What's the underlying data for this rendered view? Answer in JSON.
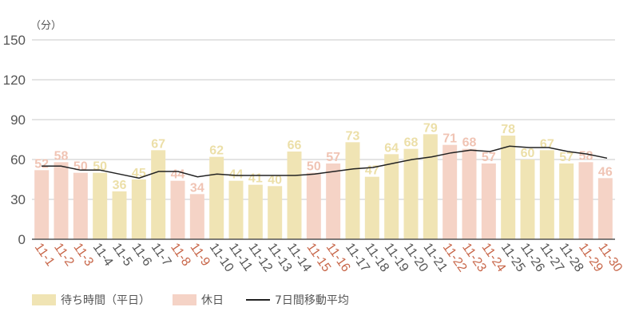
{
  "chart_data": {
    "type": "bar",
    "title": "",
    "unit_label": "（分）",
    "xlabel": "",
    "ylabel": "（分）",
    "ylim": [
      0,
      150
    ],
    "yticks": [
      0,
      30,
      60,
      90,
      120,
      150
    ],
    "grid": true,
    "legend_position": "bottom-left",
    "categories": [
      "11-1",
      "11-2",
      "11-3",
      "11-4",
      "11-5",
      "11-6",
      "11-7",
      "11-8",
      "11-9",
      "11-10",
      "11-11",
      "11-12",
      "11-13",
      "11-14",
      "11-15",
      "11-16",
      "11-17",
      "11-18",
      "11-19",
      "11-20",
      "11-21",
      "11-22",
      "11-23",
      "11-24",
      "11-25",
      "11-26",
      "11-27",
      "11-28",
      "11-29",
      "11-30"
    ],
    "values": [
      52,
      58,
      50,
      50,
      36,
      45,
      67,
      44,
      34,
      62,
      44,
      41,
      40,
      66,
      50,
      57,
      73,
      47,
      64,
      68,
      79,
      71,
      68,
      57,
      78,
      60,
      67,
      57,
      58,
      46
    ],
    "holiday": [
      true,
      true,
      true,
      false,
      false,
      false,
      false,
      true,
      true,
      false,
      false,
      false,
      false,
      false,
      true,
      true,
      false,
      false,
      false,
      false,
      false,
      true,
      true,
      true,
      false,
      false,
      false,
      false,
      true,
      true
    ],
    "series": [
      {
        "name": "待ち時間（平日）",
        "type": "bar",
        "color": "#f0e4b4"
      },
      {
        "name": "休日",
        "type": "bar",
        "color": "#f5d3c6"
      },
      {
        "name": "7日間移動平均",
        "type": "line",
        "color": "#222222",
        "values": [
          55,
          55,
          52,
          52,
          49,
          46,
          51,
          51,
          47,
          49,
          48,
          48,
          48,
          48,
          49,
          51,
          53,
          54,
          57,
          60,
          62,
          65,
          67,
          66,
          70,
          69,
          69,
          66,
          64,
          61
        ]
      }
    ]
  },
  "colors": {
    "weekday_bar": "#f0e4b4",
    "holiday_bar": "#f5d3c6",
    "weekday_label": "#ecdfa8",
    "holiday_label": "#f0c4b4",
    "weekday_xlabel": "#555555",
    "holiday_xlabel": "#c8674a",
    "grid": "#c8c8c8",
    "axis": "#555555",
    "ma_line": "#222222"
  },
  "legend": {
    "weekday": "待ち時間（平日）",
    "holiday": "休日",
    "moving_avg": "7日間移動平均"
  }
}
